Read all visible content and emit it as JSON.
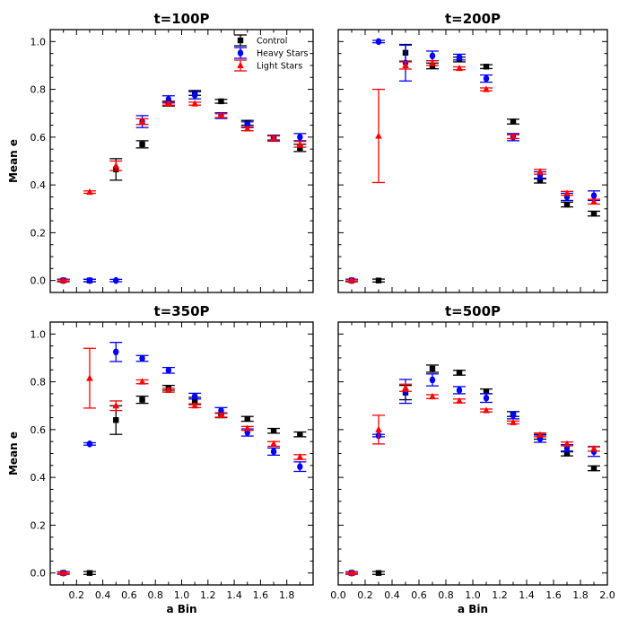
{
  "chart_data": [
    {
      "type": "scatter",
      "title": "t=100P",
      "xlabel": "",
      "ylabel": "Mean e",
      "xlim": [
        0.0,
        2.0
      ],
      "ylim": [
        -0.05,
        1.05
      ],
      "series": [
        {
          "name": "Control",
          "x": [
            0.1,
            0.3,
            0.5,
            0.7,
            0.9,
            1.1,
            1.3,
            1.5,
            1.7,
            1.9
          ],
          "values": [
            0.0,
            0.0,
            0.465,
            0.57,
            0.74,
            0.785,
            0.75,
            0.66,
            0.598,
            0.555
          ],
          "errors": [
            0.005,
            0.005,
            0.045,
            0.015,
            0.01,
            0.01,
            0.008,
            0.01,
            0.01,
            0.015
          ]
        },
        {
          "name": "Heavy Stars",
          "x": [
            0.1,
            0.3,
            0.5,
            0.7,
            0.9,
            1.1,
            1.3,
            1.5,
            1.7,
            1.9
          ],
          "values": [
            0.0,
            0.0,
            0.0,
            0.665,
            0.758,
            0.775,
            0.69,
            0.652,
            0.595,
            0.6
          ],
          "errors": [
            0.005,
            0.005,
            0.005,
            0.025,
            0.015,
            0.015,
            0.012,
            0.012,
            0.012,
            0.015
          ]
        },
        {
          "name": "Light Stars",
          "x": [
            0.1,
            0.3,
            0.5,
            0.7,
            0.9,
            1.1,
            1.3,
            1.5,
            1.7,
            1.9
          ],
          "values": [
            0.0,
            0.37,
            0.48,
            0.665,
            0.74,
            0.74,
            0.69,
            0.635,
            0.595,
            0.57
          ],
          "errors": [
            0.003,
            0.005,
            0.02,
            0.012,
            0.006,
            0.006,
            0.008,
            0.008,
            0.01,
            0.012
          ]
        }
      ]
    },
    {
      "type": "scatter",
      "title": "t=200P",
      "xlabel": "",
      "ylabel": "",
      "xlim": [
        0.0,
        2.0
      ],
      "ylim": [
        -0.05,
        1.05
      ],
      "series": [
        {
          "name": "Control",
          "x": [
            0.1,
            0.3,
            0.5,
            0.7,
            0.9,
            1.1,
            1.3,
            1.5,
            1.7,
            1.9
          ],
          "values": [
            0.0,
            0.0,
            0.953,
            0.898,
            0.925,
            0.895,
            0.665,
            0.418,
            0.318,
            0.28
          ],
          "errors": [
            0.005,
            0.006,
            0.035,
            0.012,
            0.01,
            0.008,
            0.01,
            0.01,
            0.01,
            0.01
          ]
        },
        {
          "name": "Heavy Stars",
          "x": [
            0.1,
            0.3,
            0.5,
            0.7,
            0.9,
            1.1,
            1.3,
            1.5,
            1.7,
            1.9
          ],
          "values": [
            0.0,
            1.0,
            0.91,
            0.94,
            0.935,
            0.845,
            0.6,
            0.44,
            0.35,
            0.355
          ],
          "errors": [
            0.005,
            0.005,
            0.075,
            0.02,
            0.012,
            0.015,
            0.015,
            0.015,
            0.015,
            0.02
          ]
        },
        {
          "name": "Light Stars",
          "x": [
            0.1,
            0.3,
            0.5,
            0.7,
            0.9,
            1.1,
            1.3,
            1.5,
            1.7,
            1.9
          ],
          "values": [
            0.0,
            0.605,
            0.9,
            0.91,
            0.888,
            0.8,
            0.602,
            0.455,
            0.365,
            0.33
          ],
          "errors": [
            0.003,
            0.195,
            0.015,
            0.01,
            0.006,
            0.006,
            0.008,
            0.01,
            0.008,
            0.01
          ]
        }
      ]
    },
    {
      "type": "scatter",
      "title": "t=350P",
      "xlabel": "a Bin",
      "ylabel": "Mean e",
      "xlim": [
        0.0,
        2.0
      ],
      "ylim": [
        -0.05,
        1.05
      ],
      "series": [
        {
          "name": "Control",
          "x": [
            0.1,
            0.3,
            0.5,
            0.7,
            0.9,
            1.1,
            1.3,
            1.5,
            1.7,
            1.9
          ],
          "values": [
            0.0,
            0.0,
            0.64,
            0.725,
            0.775,
            0.72,
            0.66,
            0.645,
            0.595,
            0.58
          ],
          "errors": [
            0.005,
            0.006,
            0.06,
            0.015,
            0.01,
            0.015,
            0.01,
            0.01,
            0.01,
            0.01
          ]
        },
        {
          "name": "Heavy Stars",
          "x": [
            0.1,
            0.3,
            0.5,
            0.7,
            0.9,
            1.1,
            1.3,
            1.5,
            1.7,
            1.9
          ],
          "values": [
            0.0,
            0.54,
            0.925,
            0.898,
            0.848,
            0.74,
            0.68,
            0.588,
            0.508,
            0.445
          ],
          "errors": [
            0.005,
            0.005,
            0.04,
            0.012,
            0.012,
            0.012,
            0.012,
            0.015,
            0.015,
            0.02
          ]
        },
        {
          "name": "Light Stars",
          "x": [
            0.1,
            0.3,
            0.5,
            0.7,
            0.9,
            1.1,
            1.3,
            1.5,
            1.7,
            1.9
          ],
          "values": [
            0.0,
            0.815,
            0.7,
            0.8,
            0.765,
            0.7,
            0.66,
            0.605,
            0.54,
            0.485
          ],
          "errors": [
            0.003,
            0.125,
            0.02,
            0.008,
            0.008,
            0.008,
            0.008,
            0.008,
            0.01,
            0.01
          ]
        }
      ]
    },
    {
      "type": "scatter",
      "title": "t=500P",
      "xlabel": "a Bin",
      "ylabel": "",
      "xlim": [
        0.0,
        2.0
      ],
      "ylim": [
        -0.05,
        1.05
      ],
      "series": [
        {
          "name": "Control",
          "x": [
            0.1,
            0.3,
            0.5,
            0.7,
            0.9,
            1.1,
            1.3,
            1.5,
            1.7,
            1.9
          ],
          "values": [
            0.0,
            0.0,
            0.755,
            0.855,
            0.838,
            0.76,
            0.665,
            0.57,
            0.5,
            0.438
          ],
          "errors": [
            0.005,
            0.006,
            0.03,
            0.015,
            0.01,
            0.01,
            0.01,
            0.01,
            0.01,
            0.01
          ]
        },
        {
          "name": "Heavy Stars",
          "x": [
            0.1,
            0.3,
            0.5,
            0.7,
            0.9,
            1.1,
            1.3,
            1.5,
            1.7,
            1.9
          ],
          "values": [
            0.0,
            0.575,
            0.76,
            0.808,
            0.765,
            0.732,
            0.66,
            0.562,
            0.522,
            0.508
          ],
          "errors": [
            0.005,
            0.005,
            0.05,
            0.025,
            0.015,
            0.018,
            0.015,
            0.015,
            0.015,
            0.02
          ]
        },
        {
          "name": "Light Stars",
          "x": [
            0.1,
            0.3,
            0.5,
            0.7,
            0.9,
            1.1,
            1.3,
            1.5,
            1.7,
            1.9
          ],
          "values": [
            0.0,
            0.6,
            0.775,
            0.738,
            0.72,
            0.68,
            0.63,
            0.578,
            0.54,
            0.52
          ],
          "errors": [
            0.003,
            0.06,
            0.015,
            0.008,
            0.008,
            0.006,
            0.006,
            0.008,
            0.008,
            0.01
          ]
        }
      ]
    }
  ],
  "legend": {
    "placement": "top-right",
    "entries": [
      "Control",
      "Heavy Stars",
      "Light Stars"
    ]
  },
  "colors": {
    "Control": "#000000",
    "Heavy Stars": "#0000ff",
    "Light Stars": "#ff0000"
  },
  "x_tick_labels": [
    "0.0",
    "0.2",
    "0.4",
    "0.6",
    "0.8",
    "1.0",
    "1.2",
    "1.4",
    "1.6",
    "1.8",
    "2.0"
  ],
  "y_tick_labels": [
    "0.0",
    "0.2",
    "0.4",
    "0.6",
    "0.8",
    "1.0"
  ]
}
